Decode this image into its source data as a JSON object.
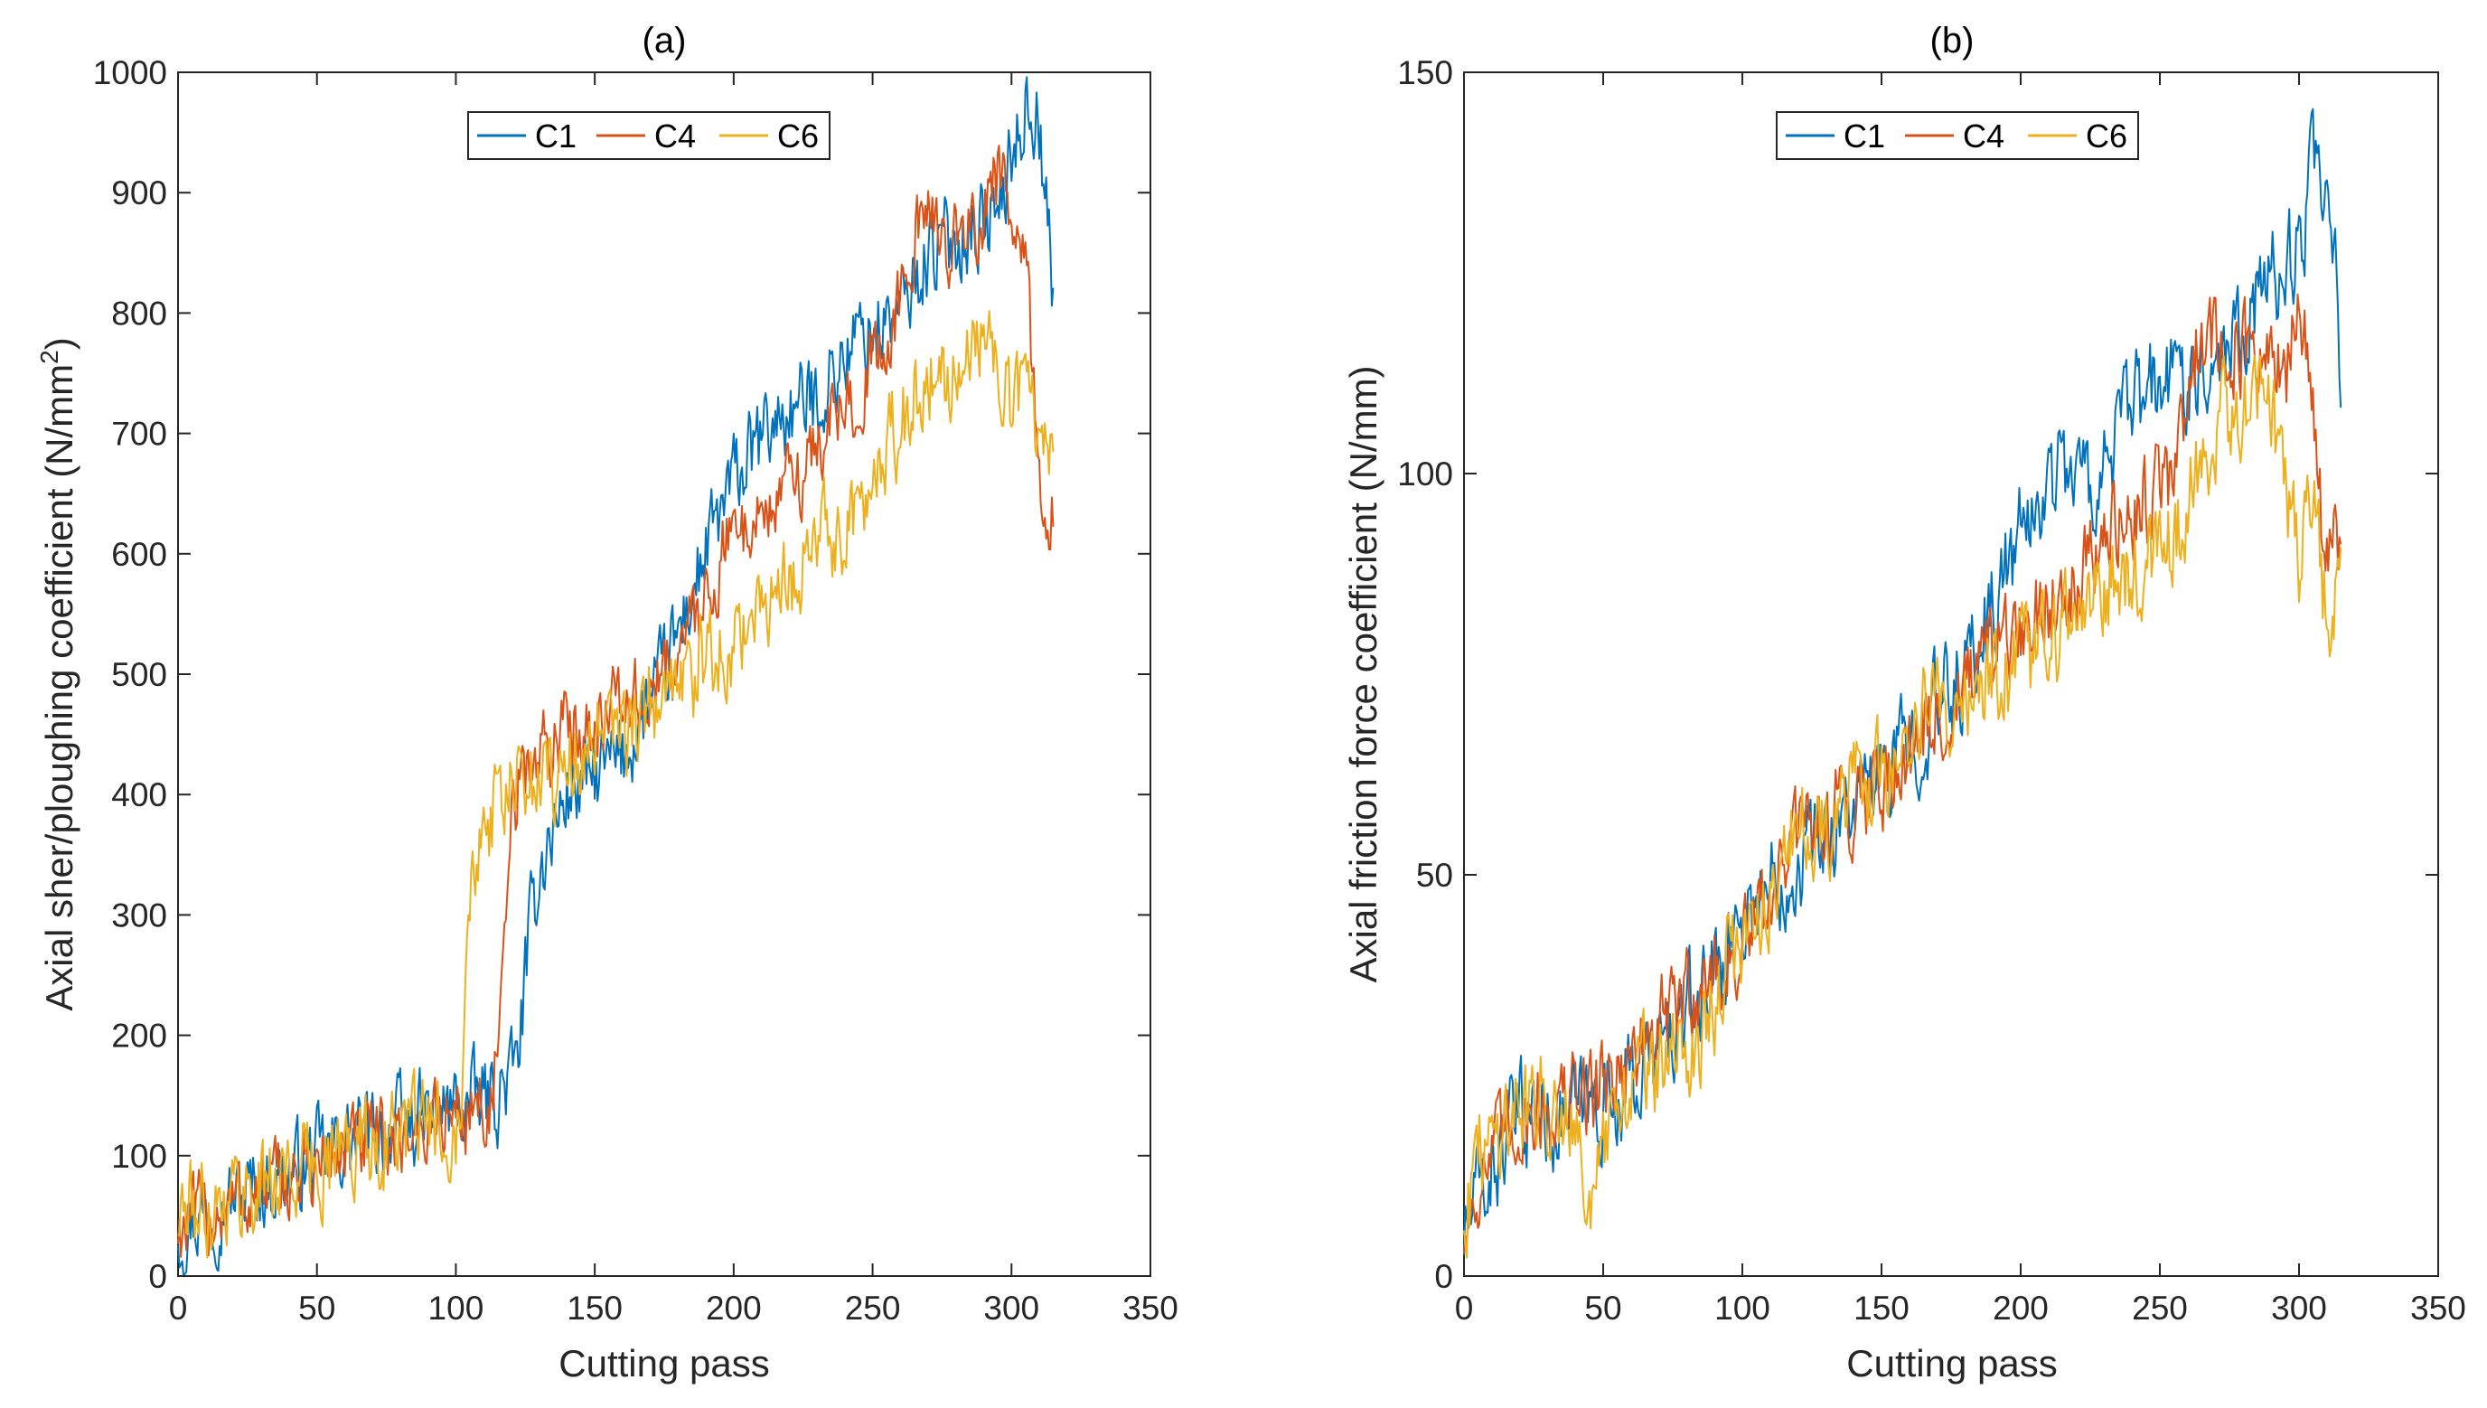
{
  "colors": {
    "C1": "#0072BD",
    "C4": "#D95319",
    "C6": "#EDB120",
    "axis": "#262626"
  },
  "chart_data": [
    {
      "type": "line",
      "title": "(a)",
      "xlabel": "Cutting pass",
      "ylabel": "Axial sher/ploughing coefficient (N/mm",
      "ylabel_sup": "2",
      "ylabel_end": ")",
      "xlim": [
        0,
        350
      ],
      "ylim": [
        0,
        1000
      ],
      "xticks": [
        0,
        50,
        100,
        150,
        200,
        250,
        300,
        350
      ],
      "yticks": [
        0,
        100,
        200,
        300,
        400,
        500,
        600,
        700,
        800,
        900,
        1000
      ],
      "legend": {
        "position": "top-center",
        "entries": [
          "C1",
          "C4",
          "C6"
        ]
      },
      "series": [
        {
          "name": "C1",
          "color": "#0072BD",
          "noise": 32,
          "x": [
            0,
            10,
            20,
            40,
            60,
            80,
            100,
            115,
            122,
            126,
            130,
            140,
            160,
            175,
            190,
            200,
            215,
            230,
            245,
            260,
            270,
            285,
            295,
            305,
            310,
            312,
            315
          ],
          "y": [
            40,
            55,
            65,
            85,
            110,
            125,
            140,
            150,
            175,
            270,
            340,
            400,
            430,
            500,
            600,
            660,
            710,
            730,
            780,
            800,
            850,
            870,
            880,
            975,
            960,
            900,
            810
          ]
        },
        {
          "name": "C4",
          "color": "#D95319",
          "noise": 30,
          "x": [
            0,
            10,
            20,
            40,
            60,
            80,
            100,
            113,
            117,
            120,
            125,
            140,
            155,
            170,
            185,
            200,
            215,
            230,
            245,
            258,
            262,
            270,
            285,
            296,
            300,
            305,
            308,
            310,
            312,
            315
          ],
          "y": [
            40,
            50,
            60,
            80,
            105,
            115,
            135,
            145,
            230,
            380,
            420,
            455,
            470,
            480,
            540,
            620,
            640,
            690,
            740,
            780,
            860,
            870,
            860,
            920,
            850,
            840,
            740,
            660,
            630,
            650
          ]
        },
        {
          "name": "C6",
          "color": "#EDB120",
          "noise": 34,
          "x": [
            0,
            10,
            20,
            40,
            60,
            80,
            100,
            102,
            104,
            108,
            115,
            125,
            140,
            160,
            180,
            200,
            215,
            230,
            245,
            255,
            265,
            280,
            290,
            295,
            300,
            305,
            310,
            315
          ],
          "y": [
            50,
            60,
            70,
            85,
            105,
            118,
            130,
            170,
            320,
            370,
            390,
            410,
            425,
            450,
            490,
            530,
            560,
            610,
            630,
            690,
            730,
            760,
            780,
            760,
            720,
            750,
            700,
            700
          ]
        }
      ]
    },
    {
      "type": "line",
      "title": "(b)",
      "xlabel": "Cutting pass",
      "ylabel": "Axial friction force coefficient (N/mm)",
      "xlim": [
        0,
        350
      ],
      "ylim": [
        0,
        150
      ],
      "xticks": [
        0,
        50,
        100,
        150,
        200,
        250,
        300,
        350
      ],
      "yticks": [
        0,
        50,
        100,
        150
      ],
      "legend": {
        "position": "top-center",
        "entries": [
          "C1",
          "C4",
          "C6"
        ]
      },
      "series": [
        {
          "name": "C1",
          "color": "#0072BD",
          "noise": 5.5,
          "x": [
            0,
            5,
            20,
            40,
            60,
            80,
            100,
            120,
            150,
            180,
            200,
            215,
            225,
            240,
            255,
            270,
            285,
            300,
            305,
            310,
            313,
            315
          ],
          "y": [
            5,
            10,
            20,
            20,
            24,
            32,
            45,
            52,
            62,
            75,
            92,
            102,
            98,
            108,
            112,
            115,
            122,
            128,
            138,
            130,
            125,
            110
          ]
        },
        {
          "name": "C4",
          "color": "#D95319",
          "noise": 5,
          "x": [
            0,
            5,
            20,
            40,
            60,
            80,
            100,
            120,
            150,
            180,
            200,
            220,
            240,
            255,
            265,
            280,
            295,
            300,
            305,
            308,
            311,
            315
          ],
          "y": [
            5,
            12,
            20,
            22,
            27,
            35,
            40,
            55,
            62,
            73,
            80,
            88,
            95,
            100,
            118,
            115,
            112,
            120,
            110,
            95,
            92,
            88
          ]
        },
        {
          "name": "C6",
          "color": "#EDB120",
          "noise": 5.5,
          "x": [
            0,
            5,
            20,
            40,
            45,
            60,
            80,
            100,
            120,
            150,
            165,
            180,
            200,
            220,
            240,
            255,
            270,
            285,
            290,
            295,
            300,
            305,
            310,
            315
          ],
          "y": [
            8,
            15,
            22,
            22,
            8,
            25,
            27,
            42,
            55,
            62,
            70,
            72,
            76,
            82,
            88,
            92,
            105,
            110,
            108,
            98,
            90,
            95,
            82,
            85
          ]
        }
      ]
    }
  ]
}
